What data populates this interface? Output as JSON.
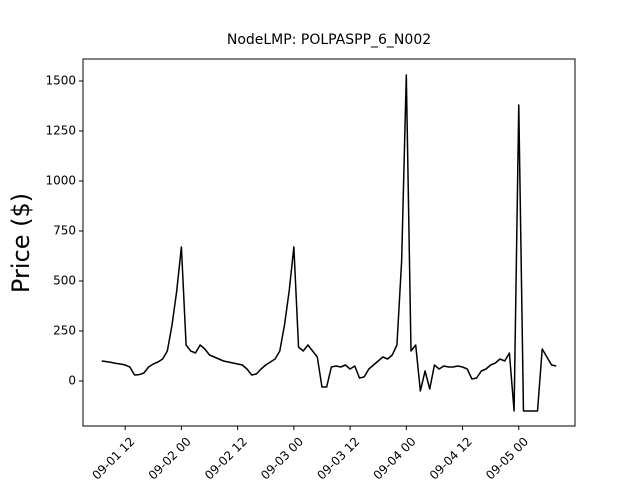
{
  "chart_data": {
    "type": "line",
    "title": "NodeLMP: POLPASPP_6_N002",
    "y_label": "Price ($)",
    "x": [
      "09-01 07",
      "09-01 08",
      "09-01 09",
      "09-01 10",
      "09-01 11",
      "09-01 12",
      "09-01 13",
      "09-01 14",
      "09-01 15",
      "09-01 16",
      "09-01 17",
      "09-01 18",
      "09-01 19",
      "09-01 20",
      "09-01 21",
      "09-01 22",
      "09-01 23",
      "09-02 00",
      "09-02 01",
      "09-02 02",
      "09-02 03",
      "09-02 04",
      "09-02 05",
      "09-02 06",
      "09-02 07",
      "09-02 08",
      "09-02 09",
      "09-02 10",
      "09-02 11",
      "09-02 12",
      "09-02 13",
      "09-02 14",
      "09-02 15",
      "09-02 16",
      "09-02 17",
      "09-02 18",
      "09-02 19",
      "09-02 20",
      "09-02 21",
      "09-02 22",
      "09-02 23",
      "09-03 00",
      "09-03 01",
      "09-03 02",
      "09-03 03",
      "09-03 04",
      "09-03 05",
      "09-03 06",
      "09-03 07",
      "09-03 08",
      "09-03 09",
      "09-03 10",
      "09-03 11",
      "09-03 12",
      "09-03 13",
      "09-03 14",
      "09-03 15",
      "09-03 16",
      "09-03 17",
      "09-03 18",
      "09-03 19",
      "09-03 20",
      "09-03 21",
      "09-03 22",
      "09-03 23",
      "09-04 00",
      "09-04 01",
      "09-04 02",
      "09-04 03",
      "09-04 04",
      "09-04 05",
      "09-04 06",
      "09-04 07",
      "09-04 08",
      "09-04 09",
      "09-04 10",
      "09-04 11",
      "09-04 12",
      "09-04 13",
      "09-04 14",
      "09-04 15",
      "09-04 16",
      "09-04 17",
      "09-04 18",
      "09-04 19",
      "09-04 20",
      "09-04 21",
      "09-04 22",
      "09-04 23",
      "09-05 00",
      "09-05 01",
      "09-05 02",
      "09-05 03",
      "09-05 04",
      "09-05 05",
      "09-05 06",
      "09-05 07",
      "09-05 08"
    ],
    "series": [
      {
        "name": "NodeLMP",
        "color": "#000000",
        "values": [
          100,
          97,
          93,
          88,
          85,
          80,
          70,
          30,
          32,
          40,
          70,
          85,
          95,
          110,
          150,
          280,
          450,
          670,
          180,
          150,
          140,
          180,
          160,
          130,
          120,
          110,
          100,
          95,
          90,
          85,
          80,
          60,
          30,
          35,
          60,
          80,
          95,
          110,
          150,
          280,
          450,
          670,
          170,
          150,
          180,
          150,
          120,
          -30,
          -30,
          70,
          75,
          70,
          80,
          60,
          75,
          15,
          20,
          60,
          80,
          100,
          120,
          110,
          130,
          180,
          600,
          1530,
          150,
          180,
          -50,
          50,
          -40,
          80,
          60,
          75,
          70,
          70,
          75,
          70,
          60,
          10,
          15,
          50,
          60,
          80,
          90,
          110,
          100,
          140,
          -150,
          1380,
          -150,
          -150,
          -150,
          -150,
          160,
          120,
          80,
          75
        ]
      }
    ],
    "xlim": [
      "09-01 03",
      "09-05 12"
    ],
    "xticks": [
      "09-01 12",
      "09-02 00",
      "09-02 12",
      "09-03 00",
      "09-03 12",
      "09-04 00",
      "09-04 12",
      "09-05 00"
    ],
    "ylim": [
      -225,
      1610
    ],
    "yticks": [
      0,
      250,
      500,
      750,
      1000,
      1250,
      1500
    ]
  }
}
